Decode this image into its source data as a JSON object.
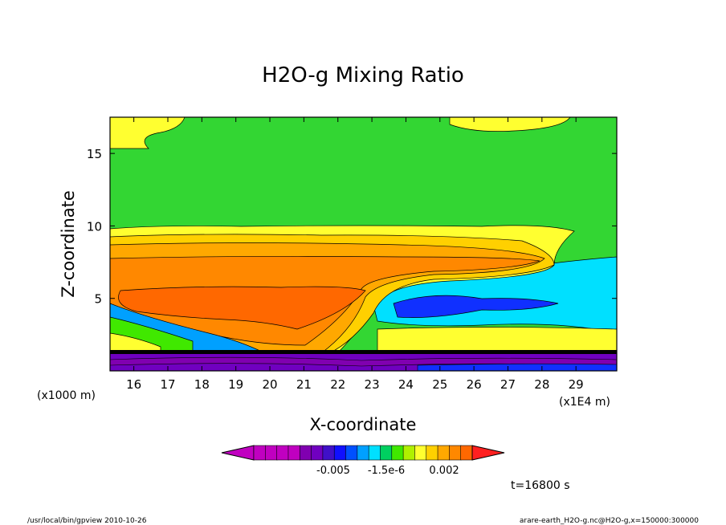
{
  "chart_data": {
    "type": "heatmap",
    "title": "H2O-g Mixing Ratio",
    "xlabel": "X-coordinate",
    "ylabel": "Z-coordinate",
    "x_unit_note": "(x1E4 m)",
    "y_unit_note": "(x1000 m)",
    "x_ticks": [
      "16",
      "17",
      "18",
      "19",
      "20",
      "21",
      "22",
      "23",
      "24",
      "25",
      "26",
      "27",
      "28",
      "29"
    ],
    "y_ticks": [
      "5",
      "10",
      "15"
    ],
    "xlim": [
      15.3,
      30.2
    ],
    "ylim": [
      0,
      17.5
    ],
    "colorbar_labels": [
      "-0.005",
      "-1.5e-6",
      "0.002"
    ],
    "colorbar_colors": [
      "#c000c0",
      "#c000c0",
      "#c000c0",
      "#c000c0",
      "#8000b0",
      "#7000c0",
      "#4010c8",
      "#1010ff",
      "#0050ff",
      "#00a0ff",
      "#00e0ff",
      "#00d060",
      "#40e800",
      "#b0f000",
      "#ffff30",
      "#ffd000",
      "#ffa800",
      "#ff8800",
      "#ff6800"
    ],
    "time_label": "t=16800 s",
    "bands": [
      {
        "level": "moist-surface",
        "z_top": 1.5,
        "color": "#8000b0"
      },
      {
        "level": "upper-moist",
        "z_top": 17.5,
        "color": "#33d633"
      }
    ]
  },
  "footer": {
    "left": "/usr/local/bin/gpview  2010-10-26",
    "right": "arare-earth_H2O-g.nc@H2O-g,x=150000:300000"
  }
}
